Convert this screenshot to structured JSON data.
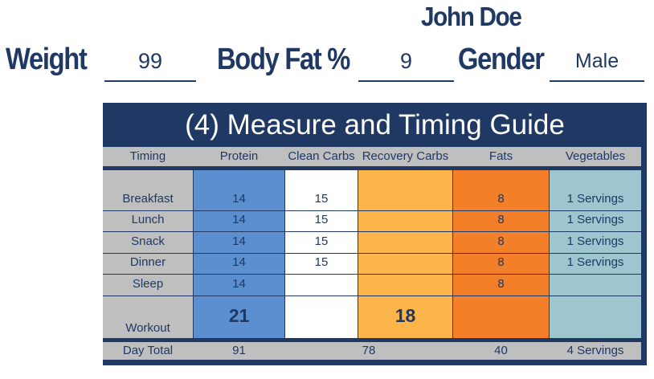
{
  "header": {
    "name": "John Doe",
    "weight": {
      "label": "Weight",
      "value": "99"
    },
    "body_fat": {
      "label": "Body Fat %",
      "value": "9"
    },
    "gender": {
      "label": "Gender",
      "value": "Male"
    }
  },
  "guide": {
    "title": "(4) Measure and Timing Guide",
    "columns": [
      "Timing",
      "Protein",
      "Clean Carbs",
      "Recovery Carbs",
      "Fats",
      "Vegetables"
    ],
    "rows": [
      {
        "timing": "Breakfast",
        "protein": "14",
        "clean_carbs": "15",
        "recovery_carbs": "",
        "fats": "8",
        "vegetables": "1 Servings"
      },
      {
        "timing": "Lunch",
        "protein": "14",
        "clean_carbs": "15",
        "recovery_carbs": "",
        "fats": "8",
        "vegetables": "1 Servings"
      },
      {
        "timing": "Snack",
        "protein": "14",
        "clean_carbs": "15",
        "recovery_carbs": "",
        "fats": "8",
        "vegetables": "1 Servings"
      },
      {
        "timing": "Dinner",
        "protein": "14",
        "clean_carbs": "15",
        "recovery_carbs": "",
        "fats": "8",
        "vegetables": "1 Servings"
      },
      {
        "timing": "Sleep",
        "protein": "14",
        "clean_carbs": "",
        "recovery_carbs": "",
        "fats": "8",
        "vegetables": ""
      },
      {
        "timing": "Workout",
        "protein": "21",
        "clean_carbs": "",
        "recovery_carbs": "18",
        "fats": "",
        "vegetables": ""
      }
    ],
    "totals": {
      "label": "Day Total",
      "protein": "91",
      "carbs": "78",
      "fats": "40",
      "vegetables": "4 Servings"
    }
  },
  "colors": {
    "navy": "#1f3864",
    "header_gray": "#bfbfbf",
    "protein_blue": "#5b8fd0",
    "clean_carbs_white": "#ffffff",
    "recovery_carbs_orange": "#fcb54a",
    "fats_orange": "#f37f28",
    "vegetables_teal": "#9ec6cf"
  }
}
